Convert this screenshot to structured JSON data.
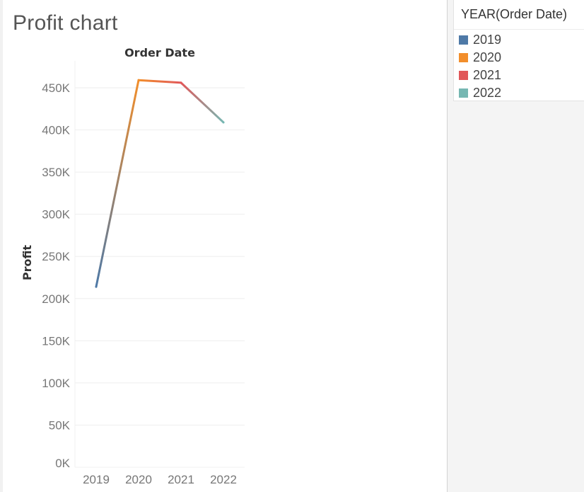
{
  "chart_data": {
    "type": "line",
    "title": "Profit chart",
    "xlabel": "Order Date",
    "ylabel": "Profit",
    "x": [
      "2019",
      "2020",
      "2021",
      "2022"
    ],
    "series": [
      {
        "values": [
          214000,
          459000,
          456000,
          409000
        ]
      }
    ],
    "ylim": [
      0,
      480000
    ],
    "yticks": [
      0,
      50000,
      100000,
      150000,
      200000,
      250000,
      300000,
      350000,
      400000,
      450000
    ],
    "ytick_labels": [
      "0K",
      "50K",
      "100K",
      "150K",
      "200K",
      "250K",
      "300K",
      "350K",
      "400K",
      "450K"
    ],
    "grid": true,
    "legend": {
      "title": "YEAR(Order Date)",
      "placement": "right",
      "entries": [
        {
          "label": "2019",
          "color": "#4e79a7"
        },
        {
          "label": "2020",
          "color": "#f28e2b"
        },
        {
          "label": "2021",
          "color": "#e15759"
        },
        {
          "label": "2022",
          "color": "#76b7b2"
        }
      ]
    }
  }
}
